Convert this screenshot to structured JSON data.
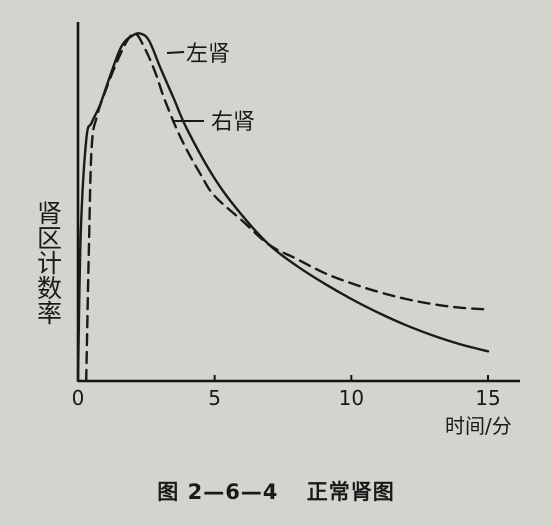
{
  "caption": {
    "figure_number": "图 2—6—4",
    "title": "正常肾图"
  },
  "chart_data": {
    "type": "line",
    "title": "正常肾图",
    "xlabel": "时间/分",
    "ylabel": "肾区计数率",
    "xlim": [
      0,
      16
    ],
    "ylim": [
      0,
      10
    ],
    "x_ticks": [
      0,
      5,
      10,
      15
    ],
    "x_tick_labels": [
      "0",
      "5",
      "10",
      "15"
    ],
    "grid": false,
    "legend": "direct labels",
    "series": [
      {
        "name": "左肾",
        "style": "solid",
        "color": "#1a1a1a",
        "x": [
          0,
          0.1,
          0.3,
          0.5,
          0.8,
          1.2,
          1.6,
          2.0,
          2.3,
          2.6,
          3.0,
          3.5,
          4.0,
          5.0,
          6.0,
          7.0,
          8.0,
          9.0,
          10.0,
          11.0,
          12.0,
          13.0,
          14.0,
          15.0
        ],
        "y": [
          0,
          4.2,
          6.9,
          7.4,
          7.9,
          8.8,
          9.6,
          9.9,
          9.95,
          9.75,
          9.0,
          8.1,
          7.2,
          5.8,
          4.75,
          3.9,
          3.3,
          2.8,
          2.35,
          1.95,
          1.6,
          1.3,
          1.05,
          0.85
        ]
      },
      {
        "name": "右肾",
        "style": "dashed",
        "color": "#1a1a1a",
        "x": [
          0.3,
          0.4,
          0.5,
          0.7,
          1.0,
          1.4,
          1.8,
          2.1,
          2.4,
          2.8,
          3.2,
          3.8,
          4.5,
          5.0,
          6.0,
          7.0,
          8.0,
          9.0,
          10.0,
          11.0,
          12.0,
          13.0,
          14.0,
          15.0
        ],
        "y": [
          0,
          3.8,
          6.7,
          7.6,
          8.3,
          9.1,
          9.75,
          9.95,
          9.6,
          8.9,
          8.0,
          6.9,
          5.9,
          5.3,
          4.6,
          3.9,
          3.5,
          3.1,
          2.8,
          2.55,
          2.35,
          2.2,
          2.1,
          2.05
        ]
      }
    ]
  }
}
